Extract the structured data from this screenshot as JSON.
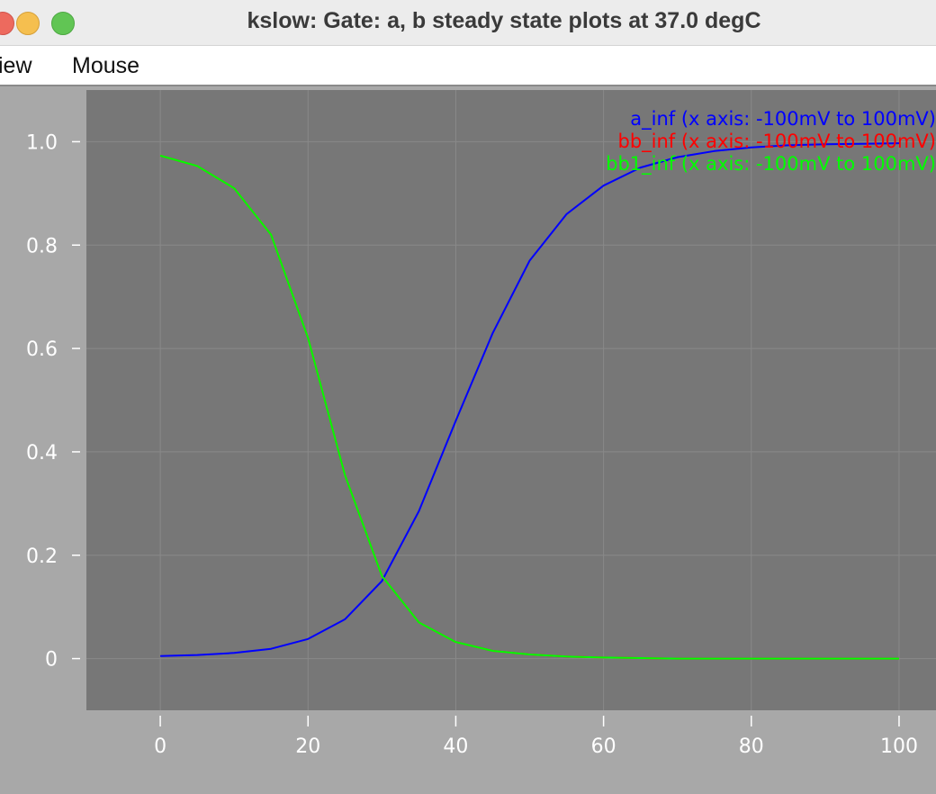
{
  "window": {
    "title": "kslow: Gate: a, b steady state plots at 37.0 degC"
  },
  "menubar": {
    "items": [
      {
        "label": "iew"
      },
      {
        "label": "Mouse"
      }
    ]
  },
  "chart_data": {
    "type": "line",
    "xlim": [
      -10,
      105
    ],
    "ylim": [
      -0.1,
      1.1
    ],
    "x_ticks": [
      0,
      20,
      40,
      60,
      80,
      100
    ],
    "x_tick_labels": [
      "0",
      "20",
      "40",
      "60",
      "80",
      "100"
    ],
    "y_ticks": [
      0,
      0.2,
      0.4,
      0.6,
      0.8,
      1.0
    ],
    "y_tick_labels": [
      "0",
      "0.2",
      "0.4",
      "0.6",
      "0.8",
      "1.0"
    ],
    "grid": true,
    "legend_position": "top-right",
    "colors": {
      "plot_background": "#777777",
      "outer_background": "#a8a8a8",
      "grid": "#898989",
      "tick_text": "#ffffff"
    },
    "x": [
      0,
      5,
      10,
      15,
      20,
      25,
      30,
      35,
      40,
      45,
      50,
      55,
      60,
      65,
      70,
      75,
      80,
      85,
      90,
      95,
      100
    ],
    "series": [
      {
        "name": "a_inf (x axis: -100mV to 100mV)",
        "color": "#0000ff",
        "values": [
          0.005,
          0.007,
          0.011,
          0.019,
          0.038,
          0.076,
          0.15,
          0.285,
          0.46,
          0.63,
          0.77,
          0.86,
          0.915,
          0.95,
          0.97,
          0.982,
          0.989,
          0.993,
          0.995,
          0.996,
          0.997
        ]
      },
      {
        "name": "bb_inf (x axis: -100mV to 100mV)",
        "color": "#ff0000",
        "values": [
          0.973,
          0.953,
          0.91,
          0.82,
          0.62,
          0.355,
          0.16,
          0.07,
          0.032,
          0.015,
          0.008,
          0.004,
          0.002,
          0.001,
          0.0,
          0.0,
          0.0,
          0.0,
          0.0,
          0.0,
          0.0
        ]
      },
      {
        "name": "bb1_inf (x axis: -100mV to 100mV)",
        "color": "#00ff00",
        "values": [
          0.973,
          0.953,
          0.91,
          0.82,
          0.62,
          0.355,
          0.16,
          0.07,
          0.032,
          0.015,
          0.008,
          0.004,
          0.002,
          0.001,
          0.0,
          0.0,
          0.0,
          0.0,
          0.0,
          0.0,
          0.0
        ]
      }
    ]
  }
}
